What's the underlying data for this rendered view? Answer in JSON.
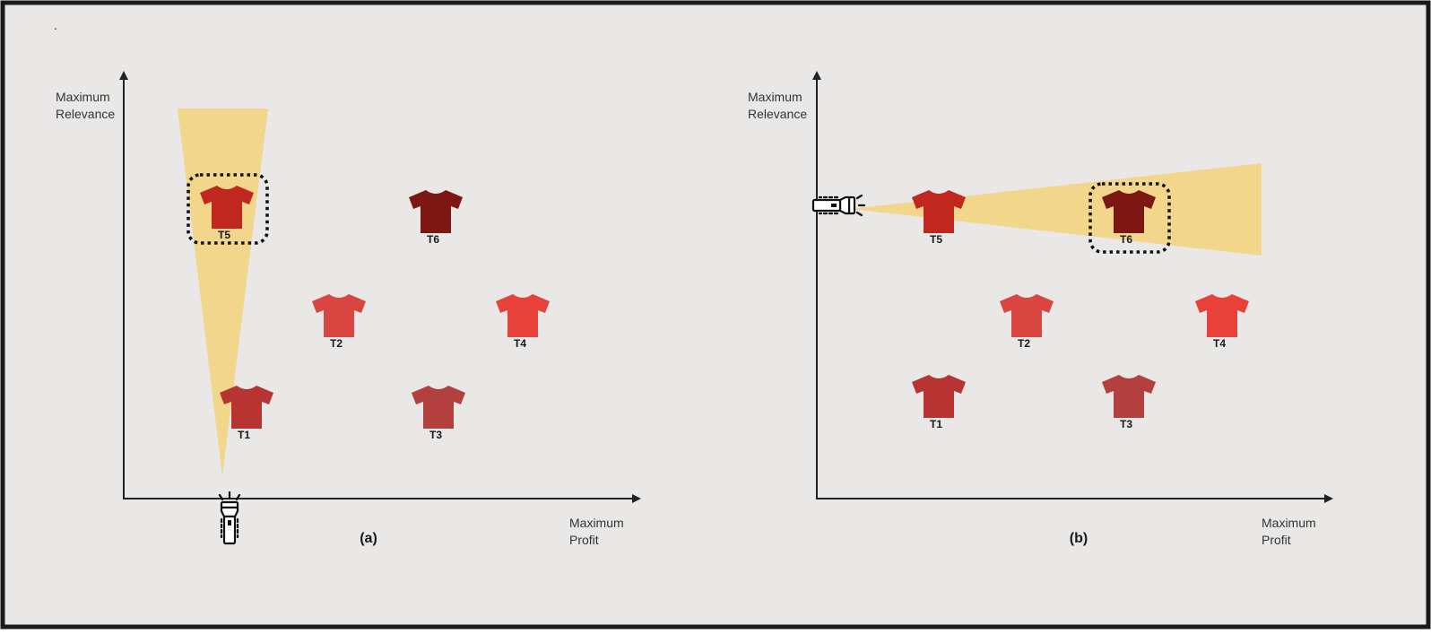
{
  "corner_mark": ".",
  "colors": {
    "background": "#e9e8e6",
    "border": "#1a1a1a",
    "axis": "#222222",
    "beam": "#f2d27a",
    "selection": "#111111"
  },
  "panels": [
    {
      "id": "a",
      "caption": "(a)",
      "y_axis_label": [
        "Maximum",
        "Relevance"
      ],
      "x_axis_label": [
        "Maximum",
        "Profit"
      ],
      "flashlight_direction": "up",
      "highlighted": "T5",
      "shirts": [
        {
          "label": "T5",
          "color": "#c0281f"
        },
        {
          "label": "T6",
          "color": "#7d1714"
        },
        {
          "label": "T2",
          "color": "#d94642"
        },
        {
          "label": "T4",
          "color": "#e8413a"
        },
        {
          "label": "T1",
          "color": "#b83432"
        },
        {
          "label": "T3",
          "color": "#b2403f"
        }
      ]
    },
    {
      "id": "b",
      "caption": "(b)",
      "y_axis_label": [
        "Maximum",
        "Relevance"
      ],
      "x_axis_label": [
        "Maximum",
        "Profit"
      ],
      "flashlight_direction": "right",
      "highlighted": "T6",
      "shirts": [
        {
          "label": "T5",
          "color": "#c0281f"
        },
        {
          "label": "T6",
          "color": "#7d1714"
        },
        {
          "label": "T2",
          "color": "#d94642"
        },
        {
          "label": "T4",
          "color": "#e8413a"
        },
        {
          "label": "T1",
          "color": "#b83432"
        },
        {
          "label": "T3",
          "color": "#b2403f"
        }
      ]
    }
  ]
}
